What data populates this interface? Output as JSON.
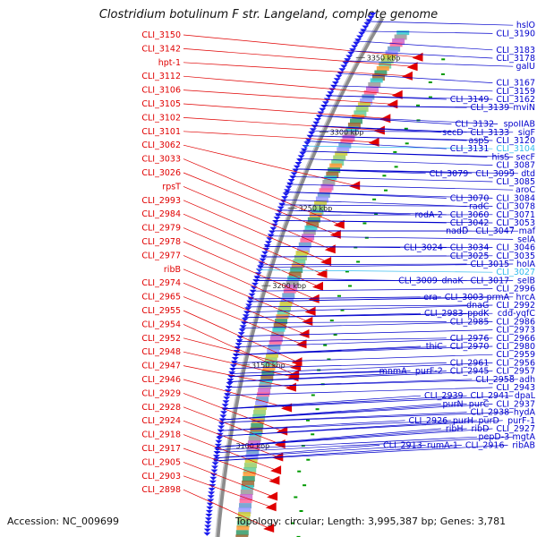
{
  "title": "Clostridium botulinum F str. Langeland, complete genome",
  "accession": "Accession: NC_009699",
  "summary": "Topology: circular; Length: 3,995,387 bp; Genes: 3,781",
  "colors": {
    "backbone": "#999999",
    "reverse_gene": "#e00000",
    "forward_gene": "#1a1aee",
    "reverse_label": "#e00000",
    "forward_label": "#0000cc",
    "highlight_label": "#33bbee",
    "dot": "#009900"
  },
  "scale_ticks": [
    {
      "label": "3350 kbp",
      "t": 0.085
    },
    {
      "label": "3300 kbp",
      "t": 0.235
    },
    {
      "label": "3250 kbp",
      "t": 0.385
    },
    {
      "label": "3200 kbp",
      "t": 0.535
    },
    {
      "label": "3150 kbp",
      "t": 0.685
    },
    {
      "label": "3100 kbp",
      "t": 0.835
    }
  ],
  "reverse_labels": [
    {
      "text": "CLI_3150",
      "t": 0.03
    },
    {
      "text": "CLI_3142",
      "t": 0.05
    },
    {
      "text": "hpt-1",
      "t": 0.07
    },
    {
      "text": "CLI_3112",
      "t": 0.11
    },
    {
      "text": "CLI_3106",
      "t": 0.13
    },
    {
      "text": "CLI_3105",
      "t": 0.16
    },
    {
      "text": "CLI_3102",
      "t": 0.185
    },
    {
      "text": "CLI_3101",
      "t": 0.21
    },
    {
      "text": "CLI_3062",
      "t": 0.3
    },
    {
      "text": "CLI_3033",
      "t": 0.38
    },
    {
      "text": "CLI_3026",
      "t": 0.4
    },
    {
      "text": "rpsT",
      "t": 0.43
    },
    {
      "text": "CLI_2993",
      "t": 0.455
    },
    {
      "text": "CLI_2984",
      "t": 0.48
    },
    {
      "text": "CLI_2979",
      "t": 0.505
    },
    {
      "text": "CLI_2978",
      "t": 0.53
    },
    {
      "text": "CLI_2977",
      "t": 0.555
    },
    {
      "text": "ribB",
      "t": 0.575
    },
    {
      "text": "CLI_2974",
      "t": 0.6
    },
    {
      "text": "CLI_2965",
      "t": 0.62
    },
    {
      "text": "CLI_2955",
      "t": 0.655
    },
    {
      "text": "CLI_2954",
      "t": 0.68
    },
    {
      "text": "CLI_2952",
      "t": 0.665
    },
    {
      "text": "CLI_2948",
      "t": 0.685
    },
    {
      "text": "CLI_2947",
      "t": 0.705
    },
    {
      "text": "CLI_2946",
      "t": 0.745
    },
    {
      "text": "CLI_2929",
      "t": 0.79
    },
    {
      "text": "CLI_2928",
      "t": 0.815
    },
    {
      "text": "CLI_2924",
      "t": 0.84
    },
    {
      "text": "CLI_2918",
      "t": 0.865
    },
    {
      "text": "CLI_2917",
      "t": 0.885
    },
    {
      "text": "CLI_2905",
      "t": 0.915
    },
    {
      "text": "CLI_2903",
      "t": 0.935
    },
    {
      "text": "CLI_2898",
      "t": 0.975
    }
  ],
  "forward_labels": [
    {
      "text": "hslO",
      "t": 0.02
    },
    {
      "text": "CLI_3190",
      "t": 0.04
    },
    {
      "text": "CLI_3183",
      "t": 0.06
    },
    {
      "text": "CLI_3178",
      "t": 0.08
    },
    {
      "text": "galU",
      "t": 0.1
    },
    {
      "text": "CLI_3167",
      "t": 0.125
    },
    {
      "text": "CLI_3159",
      "t": 0.15
    },
    {
      "text": "CLI_3149",
      "t": 0.17
    },
    {
      "text": "CLI_3162",
      "t": 0.17
    },
    {
      "text": "CLI_3139",
      "t": 0.19
    },
    {
      "text": "mviN",
      "t": 0.19
    },
    {
      "text": "CLI_3132",
      "t": 0.21
    },
    {
      "text": "spoIIAB",
      "t": 0.21
    },
    {
      "text": "secD",
      "t": 0.23
    },
    {
      "text": "CLI_3133",
      "t": 0.23
    },
    {
      "text": "sigF",
      "t": 0.24
    },
    {
      "text": "aspS",
      "t": 0.25
    },
    {
      "text": "CLI_3120",
      "t": 0.25
    },
    {
      "text": "CLI_3131",
      "t": 0.26
    },
    {
      "text": "CLI_3104",
      "t": 0.27
    },
    {
      "text": "hisS",
      "t": 0.28
    },
    {
      "text": "secF",
      "t": 0.28
    },
    {
      "text": "CLI_3087",
      "t": 0.295
    },
    {
      "text": "CLI_3079",
      "t": 0.315
    },
    {
      "text": "CLI_3099",
      "t": 0.315
    },
    {
      "text": "dtd",
      "t": 0.315
    },
    {
      "text": "CLI_3085",
      "t": 0.33
    },
    {
      "text": "aroC",
      "t": 0.345
    },
    {
      "text": "CLI_3070",
      "t": 0.36
    },
    {
      "text": "CLI_3084",
      "t": 0.36
    },
    {
      "text": "radC",
      "t": 0.375
    },
    {
      "text": "CLI_3078",
      "t": 0.385
    },
    {
      "text": "rodA-2",
      "t": 0.395
    },
    {
      "text": "CLI_3060",
      "t": 0.395
    },
    {
      "text": "CLI_3071",
      "t": 0.405
    },
    {
      "text": "CLI_3042",
      "t": 0.415
    },
    {
      "text": "CLI_3053",
      "t": 0.415
    },
    {
      "text": "nadD",
      "t": 0.435
    },
    {
      "text": "CLI_3047",
      "t": 0.435
    },
    {
      "text": "maf",
      "t": 0.435
    },
    {
      "text": "selA",
      "t": 0.445
    },
    {
      "text": "CLI_3024",
      "t": 0.465
    },
    {
      "text": "CLI_3034",
      "t": 0.465
    },
    {
      "text": "CLI_3046",
      "t": 0.465
    },
    {
      "text": "CLI_3025",
      "t": 0.485
    },
    {
      "text": "CLI_3035",
      "t": 0.485
    },
    {
      "text": "CLI_3015",
      "t": 0.5
    },
    {
      "text": "holA",
      "t": 0.505
    },
    {
      "text": "CLI_3027",
      "t": 0.51
    },
    {
      "text": "CLI_3009",
      "t": 0.525
    },
    {
      "text": "dnaK",
      "t": 0.53
    },
    {
      "text": "CLI_3017",
      "t": 0.53
    },
    {
      "text": "selB",
      "t": 0.53
    },
    {
      "text": "CLI_2996",
      "t": 0.55
    },
    {
      "text": "era",
      "t": 0.565
    },
    {
      "text": "CLI_3003",
      "t": 0.565
    },
    {
      "text": "prmA",
      "t": 0.57
    },
    {
      "text": "hrcA",
      "t": 0.57
    },
    {
      "text": "dnaG",
      "t": 0.58
    },
    {
      "text": "CLI_2992",
      "t": 0.59
    },
    {
      "text": "CLI_2983",
      "t": 0.6
    },
    {
      "text": "ppdK",
      "t": 0.6
    },
    {
      "text": "cdd-yqfC",
      "t": 0.6
    },
    {
      "text": "CLI_2985",
      "t": 0.61
    },
    {
      "text": "CLI_2986",
      "t": 0.62
    },
    {
      "text": "CLI_2973",
      "t": 0.635
    },
    {
      "text": "CLI_2976",
      "t": 0.645
    },
    {
      "text": "CLI_2966",
      "t": 0.655
    },
    {
      "text": "thiC",
      "t": 0.67
    },
    {
      "text": "CLI_2970",
      "t": 0.67
    },
    {
      "text": "CLI_2980",
      "t": 0.67
    },
    {
      "text": "CLI_2959",
      "t": 0.685
    },
    {
      "text": "CLI_2961",
      "t": 0.695
    },
    {
      "text": "CLI_2956",
      "t": 0.705
    },
    {
      "text": "mnmA",
      "t": 0.71
    },
    {
      "text": "purF-2",
      "t": 0.71
    },
    {
      "text": "CLI_2945",
      "t": 0.72
    },
    {
      "text": "CLI_2957",
      "t": 0.72
    },
    {
      "text": "CLI_2958",
      "t": 0.73
    },
    {
      "text": "adh",
      "t": 0.73
    },
    {
      "text": "CLI_2943",
      "t": 0.745
    },
    {
      "text": "CLI_2939",
      "t": 0.77
    },
    {
      "text": "CLI_2941",
      "t": 0.77
    },
    {
      "text": "dpaL",
      "t": 0.77
    },
    {
      "text": "purN",
      "t": 0.79
    },
    {
      "text": "purC",
      "t": 0.79
    },
    {
      "text": "CLI_2937",
      "t": 0.79
    },
    {
      "text": "CLI_2938",
      "t": 0.795
    },
    {
      "text": "hydA",
      "t": 0.795
    },
    {
      "text": "CLI_2926",
      "t": 0.81
    },
    {
      "text": "purH",
      "t": 0.81
    },
    {
      "text": "purD",
      "t": 0.82
    },
    {
      "text": "purF-1",
      "t": 0.82
    },
    {
      "text": "ribH",
      "t": 0.84
    },
    {
      "text": "ribD",
      "t": 0.84
    },
    {
      "text": "pepD-3",
      "t": 0.845
    },
    {
      "text": "CLI_2927",
      "t": 0.84
    },
    {
      "text": "mgtA",
      "t": 0.85
    },
    {
      "text": "CLI_2913",
      "t": 0.86
    },
    {
      "text": "rumA-1",
      "t": 0.86
    },
    {
      "text": "CLI_2916",
      "t": 0.865
    },
    {
      "text": "ribAB",
      "t": 0.865
    }
  ]
}
